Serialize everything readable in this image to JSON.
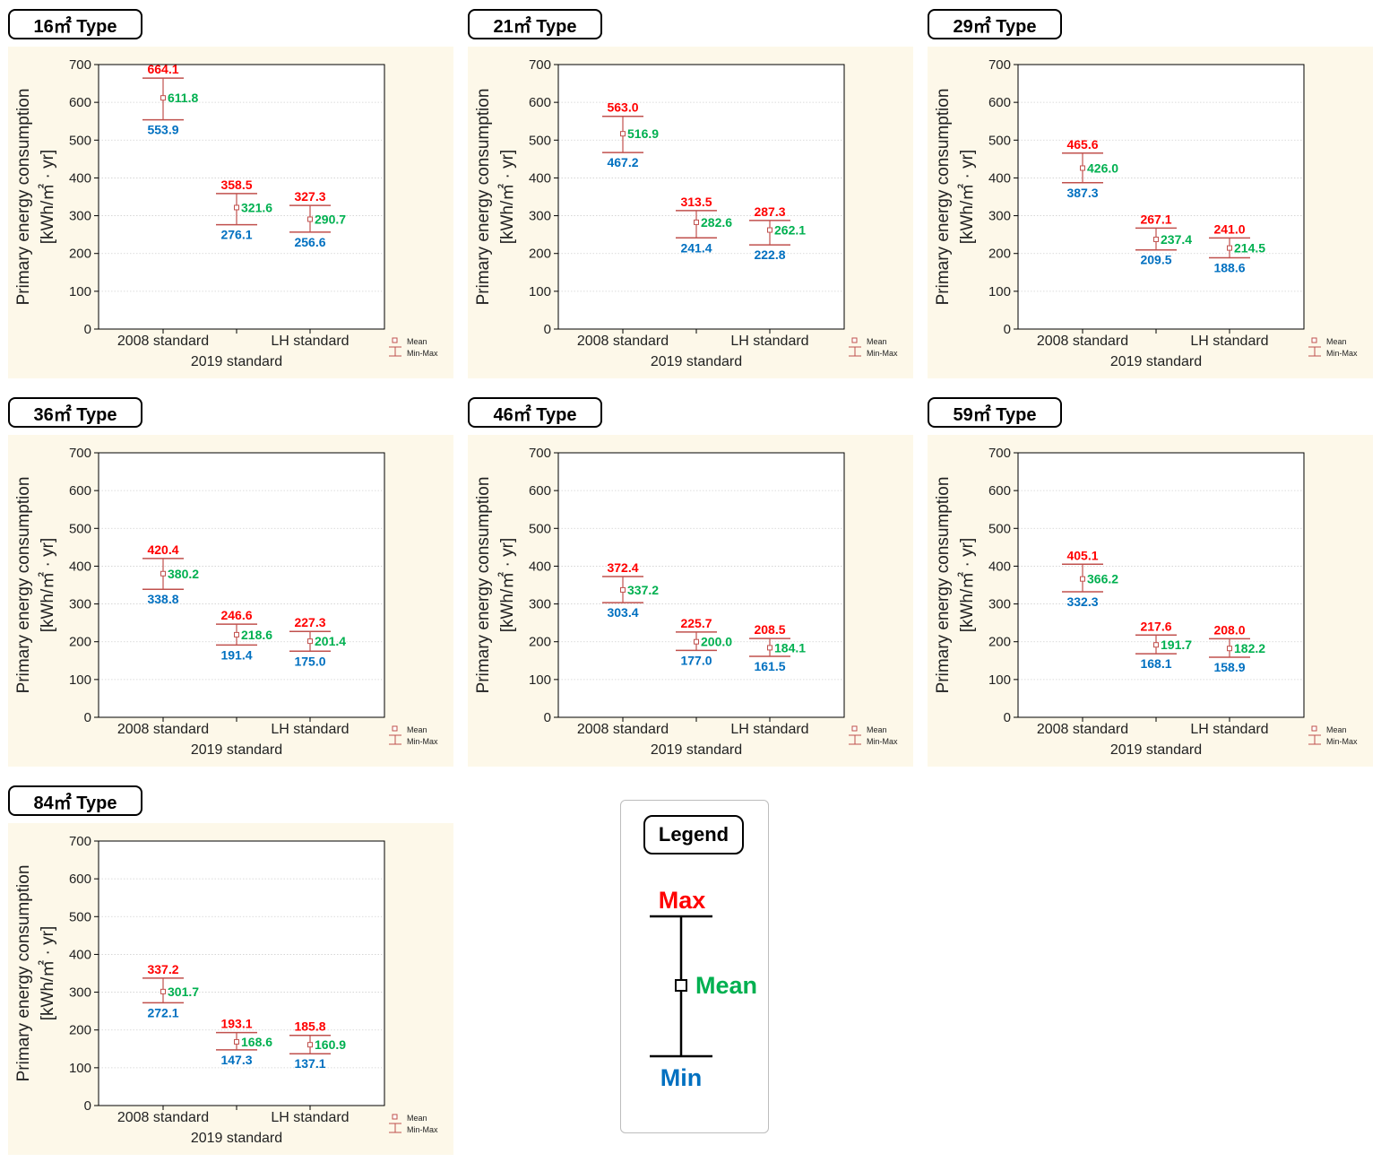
{
  "colors": {
    "max": "#ff0000",
    "mean": "#00b050",
    "min": "#0070c0",
    "whisker": "#c0504d",
    "panel_bg": "#fdf8e9"
  },
  "chart_data": [
    {
      "type": "errorbar",
      "title": "16㎡ Type",
      "ylabel1": "Primary energy consumption",
      "ylabel2": "[kWh/㎡ · yr]",
      "ylim": [
        0,
        700
      ],
      "yticks": [
        0,
        100,
        200,
        300,
        400,
        500,
        600,
        700
      ],
      "categories": [
        "2008 standard",
        "2019 standard",
        "LH standard"
      ],
      "max": [
        664.1,
        358.5,
        327.3
      ],
      "mean": [
        611.8,
        321.6,
        290.7
      ],
      "min": [
        553.9,
        276.1,
        256.6
      ],
      "legend": [
        "Mean",
        "Min-Max"
      ]
    },
    {
      "type": "errorbar",
      "title": "21㎡ Type",
      "ylabel1": "Primary energy consumption",
      "ylabel2": "[kWh/㎡ · yr]",
      "ylim": [
        0,
        700
      ],
      "yticks": [
        0,
        100,
        200,
        300,
        400,
        500,
        600,
        700
      ],
      "categories": [
        "2008 standard",
        "2019 standard",
        "LH standard"
      ],
      "max": [
        563.0,
        313.5,
        287.3
      ],
      "mean": [
        516.9,
        282.6,
        262.1
      ],
      "min": [
        467.2,
        241.4,
        222.8
      ],
      "legend": [
        "Mean",
        "Min-Max"
      ]
    },
    {
      "type": "errorbar",
      "title": "29㎡ Type",
      "ylabel1": "Primary energy consumption",
      "ylabel2": "[kWh/㎡ · yr]",
      "ylim": [
        0,
        700
      ],
      "yticks": [
        0,
        100,
        200,
        300,
        400,
        500,
        600,
        700
      ],
      "categories": [
        "2008 standard",
        "2019 standard",
        "LH standard"
      ],
      "max": [
        465.6,
        267.1,
        241.0
      ],
      "mean": [
        426.0,
        237.4,
        214.5
      ],
      "min": [
        387.3,
        209.5,
        188.6
      ],
      "legend": [
        "Mean",
        "Min-Max"
      ]
    },
    {
      "type": "errorbar",
      "title": "36㎡ Type",
      "ylabel1": "Primary energy consumption",
      "ylabel2": "[kWh/㎡ · yr]",
      "ylim": [
        0,
        700
      ],
      "yticks": [
        0,
        100,
        200,
        300,
        400,
        500,
        600,
        700
      ],
      "categories": [
        "2008 standard",
        "2019 standard",
        "LH standard"
      ],
      "max": [
        420.4,
        246.6,
        227.3
      ],
      "mean": [
        380.2,
        218.6,
        201.4
      ],
      "min": [
        338.8,
        191.4,
        175.0
      ],
      "legend": [
        "Mean",
        "Min-Max"
      ]
    },
    {
      "type": "errorbar",
      "title": "46㎡ Type",
      "ylabel1": "Primary energy consumption",
      "ylabel2": "[kWh/㎡ · yr]",
      "ylim": [
        0,
        700
      ],
      "yticks": [
        0,
        100,
        200,
        300,
        400,
        500,
        600,
        700
      ],
      "categories": [
        "2008 standard",
        "2019 standard",
        "LH standard"
      ],
      "max": [
        372.4,
        225.7,
        208.5
      ],
      "mean": [
        337.2,
        200.0,
        184.1
      ],
      "min": [
        303.4,
        177.0,
        161.5
      ],
      "legend": [
        "Mean",
        "Min-Max"
      ]
    },
    {
      "type": "errorbar",
      "title": "59㎡ Type",
      "ylabel1": "Primary energy consumption",
      "ylabel2": "[kWh/㎡ · yr]",
      "ylim": [
        0,
        700
      ],
      "yticks": [
        0,
        100,
        200,
        300,
        400,
        500,
        600,
        700
      ],
      "categories": [
        "2008 standard",
        "2019 standard",
        "LH standard"
      ],
      "max": [
        405.1,
        217.6,
        208.0
      ],
      "mean": [
        366.2,
        191.7,
        182.2
      ],
      "min": [
        332.3,
        168.1,
        158.9
      ],
      "legend": [
        "Mean",
        "Min-Max"
      ]
    },
    {
      "type": "errorbar",
      "title": "84㎡ Type",
      "ylabel1": "Primary energy consumption",
      "ylabel2": "[kWh/㎡ · yr]",
      "ylim": [
        0,
        700
      ],
      "yticks": [
        0,
        100,
        200,
        300,
        400,
        500,
        600,
        700
      ],
      "categories": [
        "2008 standard",
        "2019 standard",
        "LH standard"
      ],
      "max": [
        337.2,
        193.1,
        185.8
      ],
      "mean": [
        301.7,
        168.6,
        160.9
      ],
      "min": [
        272.1,
        147.3,
        137.1
      ],
      "legend": [
        "Mean",
        "Min-Max"
      ]
    }
  ],
  "legend_card": {
    "title": "Legend",
    "max_label": "Max",
    "mean_label": "Mean",
    "min_label": "Min"
  }
}
